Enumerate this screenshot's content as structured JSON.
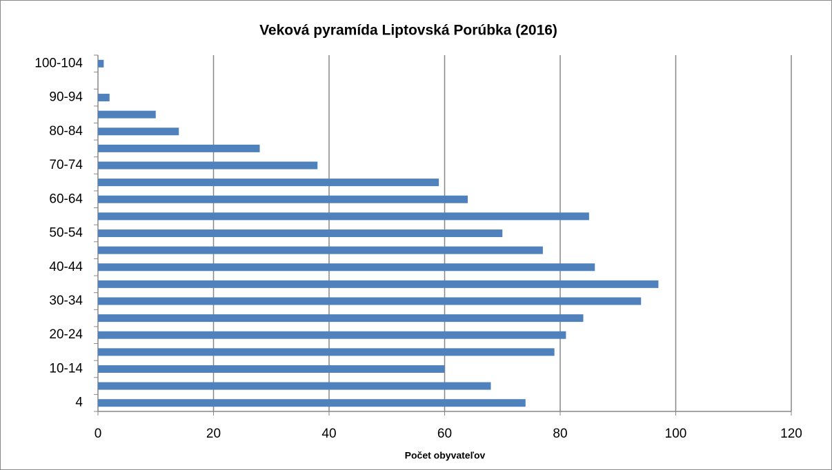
{
  "chart_data": {
    "type": "bar",
    "orientation": "horizontal",
    "title": "Veková pyramída Liptovská Porúbka (2016)",
    "x_label": "Počet obyvateľov",
    "categories": [
      "4",
      null,
      "10-14",
      null,
      "20-24",
      null,
      "30-34",
      null,
      "40-44",
      null,
      "50-54",
      null,
      "60-64",
      null,
      "70-74",
      null,
      "80-84",
      null,
      "90-94",
      null,
      "100-104"
    ],
    "values": [
      74,
      68,
      60,
      79,
      81,
      84,
      94,
      97,
      86,
      77,
      70,
      85,
      64,
      59,
      38,
      28,
      14,
      10,
      2,
      0,
      1
    ],
    "color": "#4f81bd",
    "xlim": [
      0,
      120
    ],
    "xticks": [
      0,
      20,
      40,
      60,
      80,
      100,
      120
    ],
    "grid": true
  }
}
